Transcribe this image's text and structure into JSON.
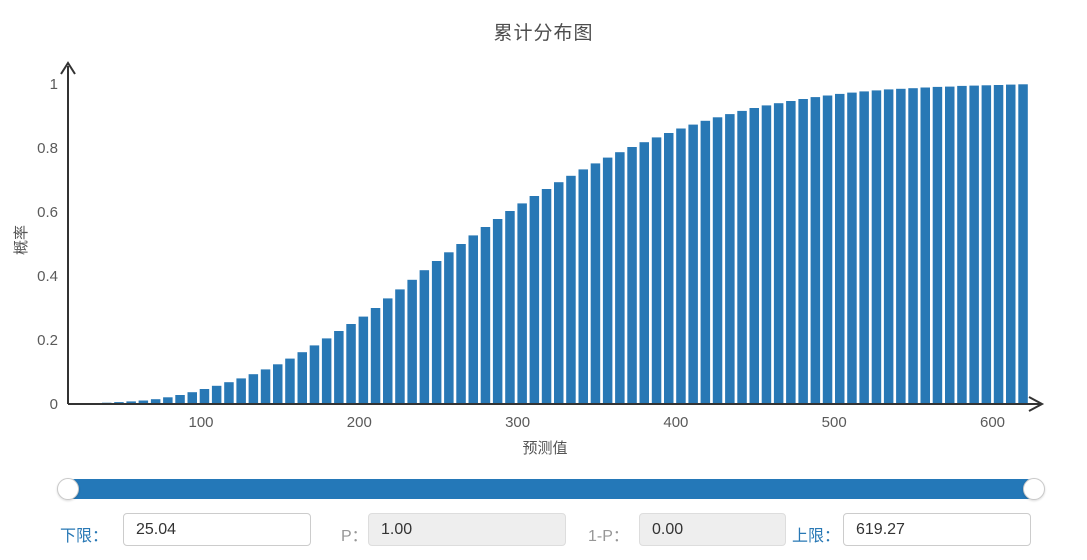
{
  "title": "累计分布图",
  "chart_data": {
    "type": "bar",
    "title": "累计分布图",
    "xlabel": "预测值",
    "ylabel": "概率",
    "x_start": 25.04,
    "x_end": 619.27,
    "n_bars": 78,
    "xlim": [
      16,
      630
    ],
    "ylim": [
      0,
      1
    ],
    "x_ticks": [
      100,
      200,
      300,
      400,
      500,
      600
    ],
    "y_ticks": [
      0,
      0.2,
      0.4,
      0.6,
      0.8,
      1
    ],
    "grid": false,
    "legend": "none",
    "bar_color": "#2878b5",
    "values": [
      0.002,
      0.003,
      0.004,
      0.006,
      0.008,
      0.011,
      0.015,
      0.021,
      0.028,
      0.037,
      0.047,
      0.057,
      0.068,
      0.08,
      0.093,
      0.108,
      0.124,
      0.142,
      0.162,
      0.183,
      0.205,
      0.228,
      0.25,
      0.273,
      0.3,
      0.33,
      0.358,
      0.388,
      0.418,
      0.447,
      0.474,
      0.5,
      0.527,
      0.553,
      0.578,
      0.603,
      0.627,
      0.65,
      0.672,
      0.693,
      0.713,
      0.733,
      0.752,
      0.77,
      0.787,
      0.803,
      0.818,
      0.833,
      0.847,
      0.861,
      0.873,
      0.885,
      0.896,
      0.906,
      0.916,
      0.925,
      0.933,
      0.94,
      0.947,
      0.953,
      0.959,
      0.964,
      0.969,
      0.973,
      0.977,
      0.98,
      0.983,
      0.985,
      0.987,
      0.989,
      0.991,
      0.992,
      0.994,
      0.995,
      0.996,
      0.997,
      0.998,
      0.999
    ]
  },
  "slider": {
    "min_value": 25.04,
    "max_value": 619.27,
    "track_color": "#2478b8"
  },
  "controls": {
    "lower": {
      "label": "下限：",
      "value": "25.04"
    },
    "p": {
      "label": "P：",
      "value": "1.00"
    },
    "one_minus_p": {
      "label": "1-P：",
      "value": "0.00"
    },
    "upper": {
      "label": "上限：",
      "value": "619.27"
    }
  },
  "colors": {
    "bar": "#2878b5",
    "axis": "#333333",
    "tick_text": "#5a5a5a",
    "axis_label_text": "#555555",
    "title_text": "#4d4d4d",
    "accent_label": "#2878b5",
    "muted_label": "#979797",
    "readonly_bg": "#eeeeee"
  }
}
